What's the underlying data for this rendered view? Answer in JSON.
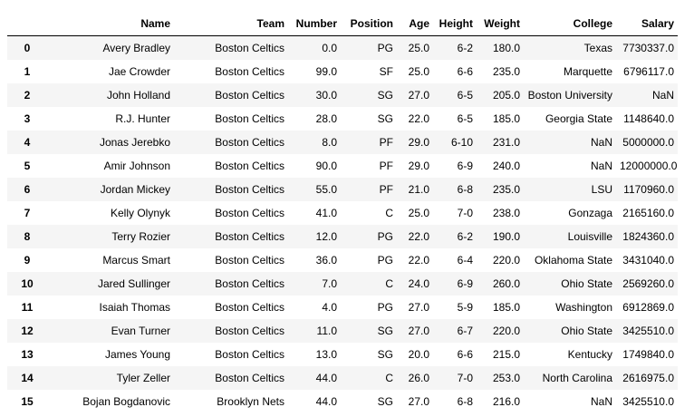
{
  "table": {
    "columns": [
      "",
      "Name",
      "Team",
      "Number",
      "Position",
      "Age",
      "Height",
      "Weight",
      "College",
      "Salary"
    ],
    "rows": [
      [
        "0",
        "Avery Bradley",
        "Boston Celtics",
        "0.0",
        "PG",
        "25.0",
        "6-2",
        "180.0",
        "Texas",
        "7730337.0"
      ],
      [
        "1",
        "Jae Crowder",
        "Boston Celtics",
        "99.0",
        "SF",
        "25.0",
        "6-6",
        "235.0",
        "Marquette",
        "6796117.0"
      ],
      [
        "2",
        "John Holland",
        "Boston Celtics",
        "30.0",
        "SG",
        "27.0",
        "6-5",
        "205.0",
        "Boston University",
        "NaN"
      ],
      [
        "3",
        "R.J. Hunter",
        "Boston Celtics",
        "28.0",
        "SG",
        "22.0",
        "6-5",
        "185.0",
        "Georgia State",
        "1148640.0"
      ],
      [
        "4",
        "Jonas Jerebko",
        "Boston Celtics",
        "8.0",
        "PF",
        "29.0",
        "6-10",
        "231.0",
        "NaN",
        "5000000.0"
      ],
      [
        "5",
        "Amir Johnson",
        "Boston Celtics",
        "90.0",
        "PF",
        "29.0",
        "6-9",
        "240.0",
        "NaN",
        "12000000.0"
      ],
      [
        "6",
        "Jordan Mickey",
        "Boston Celtics",
        "55.0",
        "PF",
        "21.0",
        "6-8",
        "235.0",
        "LSU",
        "1170960.0"
      ],
      [
        "7",
        "Kelly Olynyk",
        "Boston Celtics",
        "41.0",
        "C",
        "25.0",
        "7-0",
        "238.0",
        "Gonzaga",
        "2165160.0"
      ],
      [
        "8",
        "Terry Rozier",
        "Boston Celtics",
        "12.0",
        "PG",
        "22.0",
        "6-2",
        "190.0",
        "Louisville",
        "1824360.0"
      ],
      [
        "9",
        "Marcus Smart",
        "Boston Celtics",
        "36.0",
        "PG",
        "22.0",
        "6-4",
        "220.0",
        "Oklahoma State",
        "3431040.0"
      ],
      [
        "10",
        "Jared Sullinger",
        "Boston Celtics",
        "7.0",
        "C",
        "24.0",
        "6-9",
        "260.0",
        "Ohio State",
        "2569260.0"
      ],
      [
        "11",
        "Isaiah Thomas",
        "Boston Celtics",
        "4.0",
        "PG",
        "27.0",
        "5-9",
        "185.0",
        "Washington",
        "6912869.0"
      ],
      [
        "12",
        "Evan Turner",
        "Boston Celtics",
        "11.0",
        "SG",
        "27.0",
        "6-7",
        "220.0",
        "Ohio State",
        "3425510.0"
      ],
      [
        "13",
        "James Young",
        "Boston Celtics",
        "13.0",
        "SG",
        "20.0",
        "6-6",
        "215.0",
        "Kentucky",
        "1749840.0"
      ],
      [
        "14",
        "Tyler Zeller",
        "Boston Celtics",
        "44.0",
        "C",
        "26.0",
        "7-0",
        "253.0",
        "North Carolina",
        "2616975.0"
      ],
      [
        "15",
        "Bojan Bogdanovic",
        "Brooklyn Nets",
        "44.0",
        "SG",
        "27.0",
        "6-8",
        "216.0",
        "NaN",
        "3425510.0"
      ]
    ]
  }
}
